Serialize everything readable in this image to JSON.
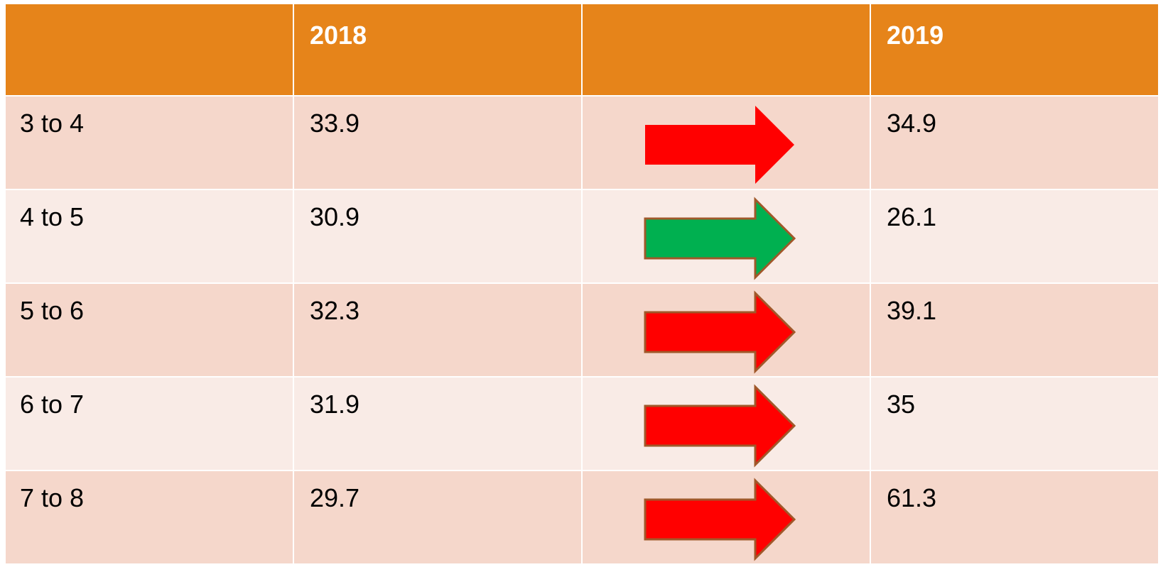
{
  "table": {
    "header": [
      "2018",
      "2019"
    ],
    "rows": [
      [
        "3 to 4",
        33.9,
        34.9
      ],
      [
        "4 to 5",
        30.9,
        26.1
      ],
      [
        "5 to 6",
        32.3,
        39.1
      ],
      [
        "6 to 7",
        31.9,
        35
      ],
      [
        "7 to 8",
        29.7,
        61.3
      ]
    ],
    "arrow_colors": [
      "#ff0000",
      "#00b050",
      "#ff0000",
      "#ff0000",
      "#ff0000"
    ]
  }
}
